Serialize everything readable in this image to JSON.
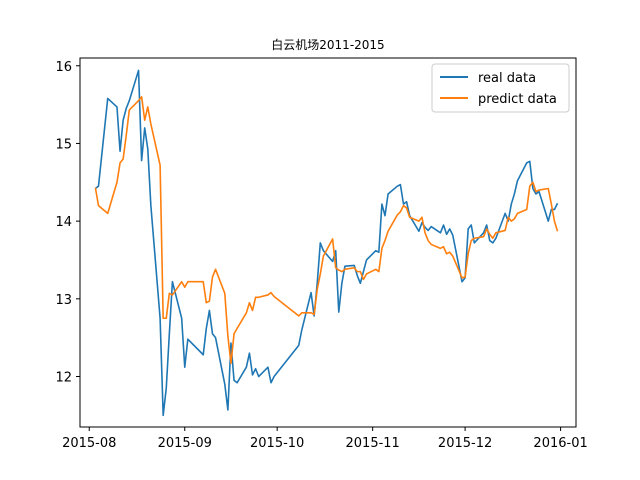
{
  "chart_data": {
    "type": "line",
    "title": "白云机场2011-2015",
    "xlabel": "",
    "ylabel": "",
    "x_ticks": [
      "2015-08",
      "2015-09",
      "2015-10",
      "2015-11",
      "2015-12",
      "2016-01"
    ],
    "y_ticks": [
      "12",
      "13",
      "14",
      "15",
      "16"
    ],
    "ylim": [
      11.35,
      16.1
    ],
    "xlim": [
      "2015-07-29",
      "2016-01-06"
    ],
    "grid": false,
    "legend": "top-right",
    "dates": [
      "2015-08-03",
      "2015-08-04",
      "2015-08-07",
      "2015-08-10",
      "2015-08-11",
      "2015-08-12",
      "2015-08-13",
      "2015-08-14",
      "2015-08-17",
      "2015-08-18",
      "2015-08-19",
      "2015-08-20",
      "2015-08-21",
      "2015-08-24",
      "2015-08-25",
      "2015-08-26",
      "2015-08-27",
      "2015-08-28",
      "2015-08-31",
      "2015-09-01",
      "2015-09-02",
      "2015-09-07",
      "2015-09-08",
      "2015-09-09",
      "2015-09-10",
      "2015-09-11",
      "2015-09-14",
      "2015-09-15",
      "2015-09-16",
      "2015-09-17",
      "2015-09-18",
      "2015-09-21",
      "2015-09-22",
      "2015-09-23",
      "2015-09-24",
      "2015-09-25",
      "2015-09-28",
      "2015-09-29",
      "2015-09-30",
      "2015-10-08",
      "2015-10-09",
      "2015-10-12",
      "2015-10-13",
      "2015-10-14",
      "2015-10-15",
      "2015-10-16",
      "2015-10-19",
      "2015-10-20",
      "2015-10-21",
      "2015-10-22",
      "2015-10-23",
      "2015-10-26",
      "2015-10-27",
      "2015-10-28",
      "2015-10-29",
      "2015-10-30",
      "2015-11-02",
      "2015-11-03",
      "2015-11-04",
      "2015-11-05",
      "2015-11-06",
      "2015-11-09",
      "2015-11-10",
      "2015-11-11",
      "2015-11-12",
      "2015-11-13",
      "2015-11-16",
      "2015-11-17",
      "2015-11-18",
      "2015-11-19",
      "2015-11-20",
      "2015-11-23",
      "2015-11-24",
      "2015-11-25",
      "2015-11-26",
      "2015-11-27",
      "2015-11-30",
      "2015-12-01",
      "2015-12-02",
      "2015-12-03",
      "2015-12-04",
      "2015-12-07",
      "2015-12-08",
      "2015-12-09",
      "2015-12-10",
      "2015-12-11",
      "2015-12-14",
      "2015-12-15",
      "2015-12-16",
      "2015-12-17",
      "2015-12-18",
      "2015-12-21",
      "2015-12-22",
      "2015-12-23",
      "2015-12-24",
      "2015-12-25",
      "2015-12-28",
      "2015-12-29",
      "2015-12-30",
      "2015-12-31"
    ],
    "series": [
      {
        "name": "real data",
        "color": "#1f77b4",
        "values": [
          14.42,
          14.45,
          15.58,
          15.47,
          14.9,
          15.3,
          15.45,
          15.55,
          15.94,
          14.78,
          15.2,
          14.93,
          14.2,
          12.75,
          11.5,
          11.85,
          12.55,
          13.22,
          12.75,
          12.12,
          12.48,
          12.28,
          12.62,
          12.85,
          12.55,
          12.5,
          11.9,
          11.57,
          12.43,
          11.95,
          11.92,
          12.12,
          12.3,
          12.02,
          12.1,
          12.0,
          12.12,
          11.92,
          12.0,
          12.4,
          12.6,
          13.08,
          12.78,
          13.2,
          13.72,
          13.62,
          13.48,
          13.62,
          12.83,
          13.2,
          13.42,
          13.43,
          13.3,
          13.2,
          13.35,
          13.5,
          13.62,
          13.6,
          14.22,
          14.07,
          14.35,
          14.45,
          14.47,
          14.22,
          14.25,
          14.07,
          13.87,
          13.98,
          13.92,
          13.88,
          13.93,
          13.85,
          13.95,
          13.83,
          13.9,
          13.82,
          13.22,
          13.27,
          13.9,
          13.95,
          13.72,
          13.85,
          13.95,
          13.75,
          13.72,
          13.78,
          14.1,
          14.0,
          14.22,
          14.35,
          14.52,
          14.75,
          14.77,
          14.42,
          14.35,
          14.38,
          14.0,
          14.15,
          14.15,
          14.23
        ]
      },
      {
        "name": "predict data",
        "color": "#ff7f0e",
        "values": [
          14.43,
          14.2,
          14.1,
          14.5,
          14.75,
          14.8,
          15.1,
          15.43,
          15.55,
          15.6,
          15.3,
          15.47,
          15.25,
          14.72,
          12.75,
          12.75,
          13.07,
          13.05,
          13.22,
          13.15,
          13.22,
          13.22,
          12.95,
          12.97,
          13.28,
          13.38,
          13.07,
          12.52,
          12.17,
          12.55,
          12.62,
          12.82,
          12.95,
          12.85,
          13.02,
          13.02,
          13.05,
          13.08,
          13.03,
          12.78,
          12.82,
          12.82,
          12.8,
          13.12,
          13.32,
          13.55,
          13.77,
          13.4,
          13.37,
          13.35,
          13.38,
          13.4,
          13.35,
          13.35,
          13.25,
          13.32,
          13.38,
          13.35,
          13.65,
          13.75,
          13.87,
          14.08,
          14.12,
          14.2,
          14.17,
          14.05,
          14.0,
          14.05,
          13.85,
          13.75,
          13.7,
          13.65,
          13.67,
          13.58,
          13.6,
          13.55,
          13.27,
          13.28,
          13.58,
          13.75,
          13.78,
          13.8,
          13.9,
          13.83,
          13.78,
          13.85,
          13.88,
          14.05,
          14.0,
          14.03,
          14.1,
          14.15,
          14.45,
          14.5,
          14.38,
          14.4,
          14.42,
          14.22,
          14.0,
          13.87
        ]
      }
    ]
  }
}
